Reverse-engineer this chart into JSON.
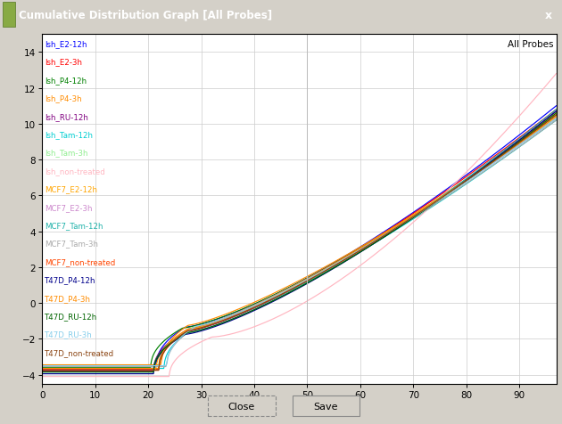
{
  "title": "Cumulative Distribution Graph [All Probes]",
  "annotation": "All Probes",
  "xlim": [
    0,
    97
  ],
  "ylim": [
    -4.5,
    15
  ],
  "yticks": [
    -4,
    -2,
    0,
    2,
    4,
    6,
    8,
    10,
    12,
    14
  ],
  "xticks": [
    0,
    10,
    20,
    30,
    40,
    50,
    60,
    70,
    80,
    90
  ],
  "vline_x": 50,
  "series": [
    {
      "label": "Ish_E2-12h",
      "color": "#0000ff",
      "flat": -3.55,
      "rs": 21.5,
      "rw": 5.5,
      "peak": 11.0,
      "curve": 1.35,
      "noise": 0.0
    },
    {
      "label": "Ish_E2-3h",
      "color": "#ff0000",
      "flat": -3.7,
      "rs": 22.0,
      "rw": 5.5,
      "peak": 10.8,
      "curve": 1.3,
      "noise": 0.0
    },
    {
      "label": "Ish_P4-12h",
      "color": "#008000",
      "flat": -3.6,
      "rs": 20.5,
      "rw": 6.0,
      "peak": 10.5,
      "curve": 1.32,
      "noise": 0.0
    },
    {
      "label": "Ish_P4-3h",
      "color": "#ff8c00",
      "flat": -3.45,
      "rs": 22.5,
      "rw": 5.0,
      "peak": 10.3,
      "curve": 1.28,
      "noise": 0.0
    },
    {
      "label": "Ish_RU-12h",
      "color": "#800080",
      "flat": -3.8,
      "rs": 21.0,
      "rw": 6.0,
      "peak": 10.7,
      "curve": 1.33,
      "noise": 0.0
    },
    {
      "label": "Ish_Tam-12h",
      "color": "#00ced1",
      "flat": -3.65,
      "rs": 23.0,
      "rw": 5.5,
      "peak": 10.2,
      "curve": 1.28,
      "noise": 0.0
    },
    {
      "label": "Ish_Tam-3h",
      "color": "#90ee90",
      "flat": -3.55,
      "rs": 22.0,
      "rw": 6.5,
      "peak": 10.4,
      "curve": 1.3,
      "noise": 0.0
    },
    {
      "label": "Ish_non-treated",
      "color": "#ffb6c1",
      "flat": -4.1,
      "rs": 24.0,
      "rw": 8.0,
      "peak": 12.8,
      "curve": 1.55,
      "noise": 0.0
    },
    {
      "label": "MCF7_E2-12h",
      "color": "#ffa500",
      "flat": -3.75,
      "rs": 21.5,
      "rw": 5.5,
      "peak": 10.6,
      "curve": 1.3,
      "noise": 0.0
    },
    {
      "label": "MCF7_E2-3h",
      "color": "#cc88cc",
      "flat": -3.65,
      "rs": 22.0,
      "rw": 5.5,
      "peak": 10.3,
      "curve": 1.27,
      "noise": 0.0
    },
    {
      "label": "MCF7_Tam-12h",
      "color": "#20b2aa",
      "flat": -3.85,
      "rs": 21.0,
      "rw": 6.5,
      "peak": 10.8,
      "curve": 1.33,
      "noise": 0.0
    },
    {
      "label": "MCF7_Tam-3h",
      "color": "#aaaaaa",
      "flat": -3.55,
      "rs": 23.5,
      "rw": 5.5,
      "peak": 10.2,
      "curve": 1.27,
      "noise": 0.0
    },
    {
      "label": "MCF7_non-treated",
      "color": "#ff4500",
      "flat": -3.75,
      "rs": 22.0,
      "rw": 5.5,
      "peak": 10.5,
      "curve": 1.3,
      "noise": 0.0
    },
    {
      "label": "T47D_P4-12h",
      "color": "#00008b",
      "flat": -3.95,
      "rs": 21.0,
      "rw": 6.0,
      "peak": 10.7,
      "curve": 1.33,
      "noise": 0.0
    },
    {
      "label": "T47D_P4-3h",
      "color": "#ff8c00",
      "flat": -3.65,
      "rs": 22.0,
      "rw": 5.5,
      "peak": 10.4,
      "curve": 1.28,
      "noise": 0.0
    },
    {
      "label": "T47D_RU-12h",
      "color": "#006400",
      "flat": -3.85,
      "rs": 21.0,
      "rw": 6.5,
      "peak": 10.6,
      "curve": 1.32,
      "noise": 0.0
    },
    {
      "label": "T47D_RU-3h",
      "color": "#87ceeb",
      "flat": -3.5,
      "rs": 23.5,
      "rw": 5.5,
      "peak": 10.3,
      "curve": 1.27,
      "noise": 0.0
    },
    {
      "label": "T47D_non-treated",
      "color": "#8b4513",
      "flat": -3.75,
      "rs": 22.0,
      "rw": 5.5,
      "peak": 10.5,
      "curve": 1.3,
      "noise": 0.0
    }
  ]
}
